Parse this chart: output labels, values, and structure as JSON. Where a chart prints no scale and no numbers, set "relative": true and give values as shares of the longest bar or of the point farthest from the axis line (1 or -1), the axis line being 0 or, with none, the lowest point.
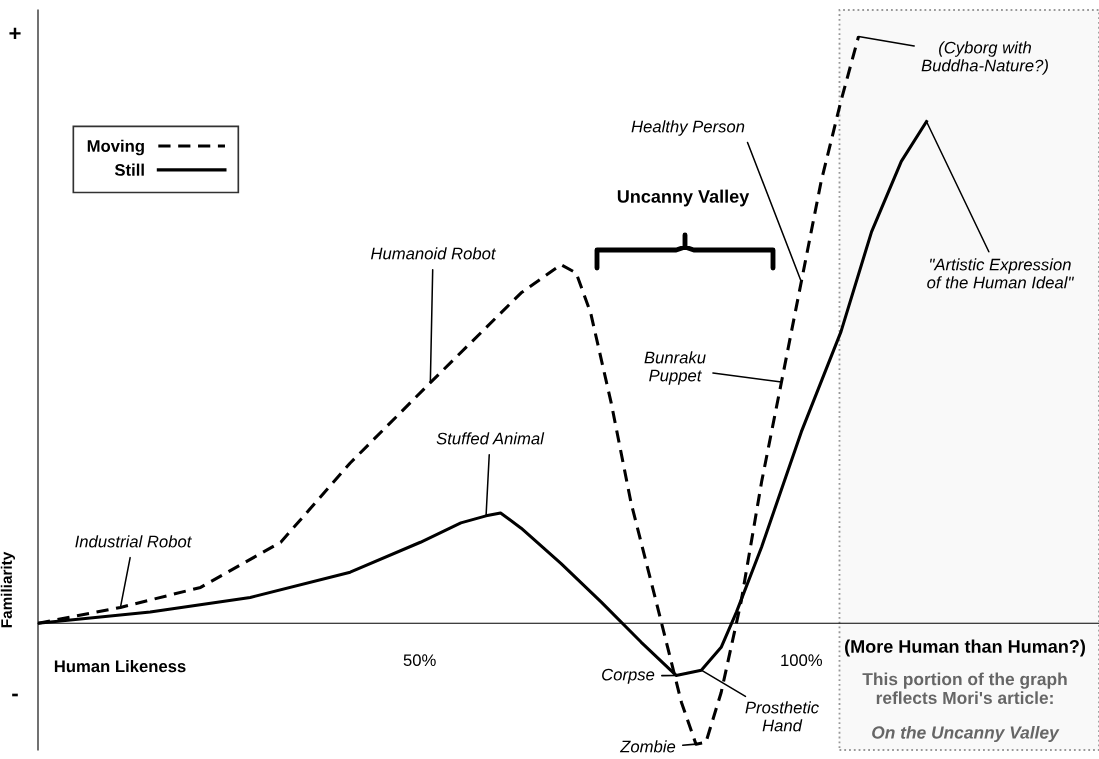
{
  "chart_data": {
    "type": "line",
    "relative": true,
    "xlabel": "Human Likeness",
    "ylabel": "Familiarity",
    "xlim": [
      0,
      139
    ],
    "xticks": [
      {
        "value": 50,
        "label": "50%"
      },
      {
        "value": 100,
        "label": "100%"
      }
    ],
    "legend": "top left",
    "grid": false,
    "series": [
      {
        "name": "Moving",
        "color": "#000000",
        "line_style": "dashed",
        "x": [
          0,
          10.8,
          21.3,
          31.8,
          40.9,
          51.4,
          56.7,
          63.3,
          68.5,
          70.5,
          72.4,
          75.1,
          77.7,
          81.0,
          84.3,
          86.2,
          87.5,
          89.5,
          92.1,
          94.8,
          97.4,
          100,
          102.6,
          105.2,
          107.5
        ],
        "values": [
          0,
          0.027,
          0.061,
          0.138,
          0.273,
          0.41,
          0.478,
          0.563,
          0.611,
          0.597,
          0.529,
          0.375,
          0.205,
          0.036,
          -0.135,
          -0.206,
          -0.203,
          -0.118,
          0.036,
          0.241,
          0.411,
          0.582,
          0.753,
          0.89,
          1.0
        ]
      },
      {
        "name": "Still",
        "color": "#000000",
        "line_style": "solid",
        "x": [
          0,
          14.7,
          27.8,
          40.9,
          50.1,
          55.4,
          58.7,
          60.6,
          63.3,
          68.5,
          73.8,
          79.0,
          83.6,
          86.9,
          89.5,
          91.5,
          94.8,
          100,
          105.2,
          109.2,
          113.1,
          116.4
        ],
        "values": [
          0,
          0.019,
          0.044,
          0.087,
          0.138,
          0.171,
          0.183,
          0.188,
          0.162,
          0.102,
          0.036,
          -0.032,
          -0.089,
          -0.08,
          -0.041,
          0.019,
          0.13,
          0.326,
          0.497,
          0.667,
          0.787,
          0.855
        ]
      }
    ],
    "bands": [
      {
        "axis": "x",
        "from": 105,
        "to": 139,
        "color": "#999999"
      }
    ],
    "annotations": [
      {
        "text": "Industrial Robot",
        "x": 10.8,
        "y": 0.027
      },
      {
        "text": "Humanoid Robot",
        "x": 51.4,
        "y": 0.41
      },
      {
        "text": "Stuffed Animal",
        "x": 58.7,
        "y": 0.183
      },
      {
        "text": "Healthy Person",
        "x": 100,
        "y": 0.582
      },
      {
        "text": "(Cyborg with\nBuddha-Nature?)",
        "x": 107.5,
        "y": 1.0
      },
      {
        "text": "Bunraku\nPuppet",
        "x": 97.4,
        "y": 0.411
      },
      {
        "text": "\"Artistic Expression\nof the Human Ideal\"",
        "x": 116.4,
        "y": 0.855
      },
      {
        "text": "Corpse",
        "x": 83.6,
        "y": -0.089
      },
      {
        "text": "Prosthetic\nHand",
        "x": 86.9,
        "y": -0.08
      },
      {
        "text": "Zombie",
        "x": 86.2,
        "y": -0.206
      },
      "Uncanny Valley",
      "(More Human than Human?)",
      "This portion of the graph\nreflects Mori's article:",
      "On the Uncanny Valley",
      "+",
      "-"
    ]
  }
}
